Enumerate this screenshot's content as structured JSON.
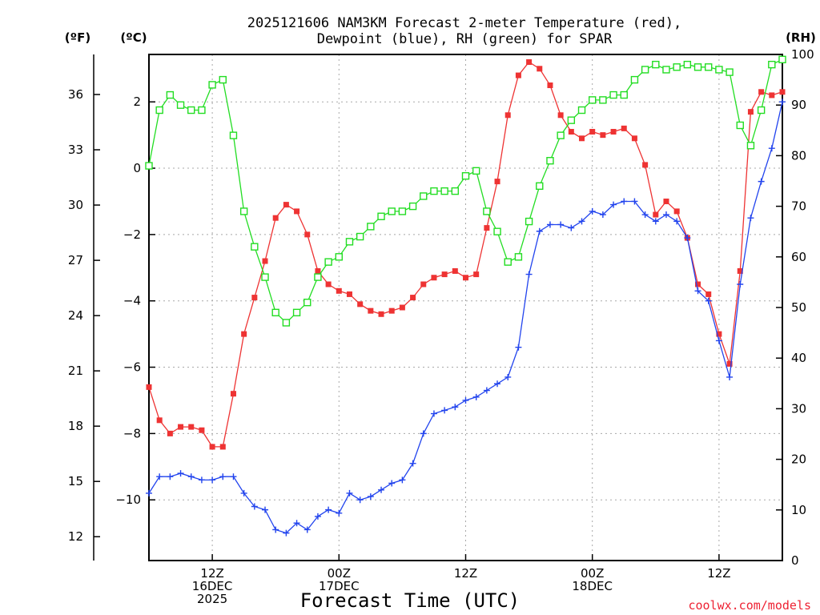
{
  "chart_data": {
    "type": "line",
    "title_line1": "2025121606 NAM3KM Forecast 2-meter Temperature (red),",
    "title_line2": "Dewpoint (blue), RH (green) for SPAR",
    "unit_f": "(ºF)",
    "unit_c": "(ºC)",
    "unit_rh": "(RH)",
    "xlabel": "Forecast Time (UTC)",
    "credit": "coolwx.com/models",
    "x_range_hours": [
      0,
      60
    ],
    "x_ticks": [
      {
        "hour": 6,
        "lines": [
          "12Z",
          "16DEC",
          "2025"
        ]
      },
      {
        "hour": 18,
        "lines": [
          "00Z",
          "17DEC"
        ]
      },
      {
        "hour": 30,
        "lines": [
          "12Z"
        ]
      },
      {
        "hour": 42,
        "lines": [
          "00Z",
          "18DEC"
        ]
      },
      {
        "hour": 54,
        "lines": [
          "12Z"
        ]
      }
    ],
    "c_range": [
      -11.83,
      3.43
    ],
    "c_ticks": [
      "-10",
      "-8",
      "-6",
      "-4",
      "-2",
      "0",
      "2"
    ],
    "f_ticks": [
      "12",
      "15",
      "18",
      "21",
      "24",
      "27",
      "30",
      "33",
      "36"
    ],
    "rh_range": [
      0,
      100
    ],
    "rh_ticks": [
      "0",
      "10",
      "20",
      "30",
      "40",
      "50",
      "60",
      "70",
      "80",
      "90",
      "100"
    ],
    "series": [
      {
        "name": "Temperature (°C)",
        "axis": "c",
        "color": "#ee3333",
        "marker": "filled-square",
        "values": [
          -6.6,
          -7.6,
          -8.0,
          -7.8,
          -7.8,
          -7.9,
          -8.4,
          -8.4,
          -6.8,
          -5.0,
          -3.9,
          -2.8,
          -1.5,
          -1.1,
          -1.3,
          -2.0,
          -3.1,
          -3.5,
          -3.7,
          -3.8,
          -4.1,
          -4.3,
          -4.4,
          -4.3,
          -4.2,
          -3.9,
          -3.5,
          -3.3,
          -3.2,
          -3.1,
          -3.3,
          -3.2,
          -1.8,
          -0.4,
          1.6,
          2.8,
          3.2,
          3.0,
          2.5,
          1.6,
          1.1,
          0.9,
          1.1,
          1.0,
          1.1,
          1.2,
          0.9,
          0.1,
          -1.4,
          -1.0,
          -1.3,
          -2.1,
          -3.5,
          -3.8,
          -5.0,
          -5.9,
          -3.1,
          1.7,
          2.3,
          2.2,
          2.3
        ]
      },
      {
        "name": "Dewpoint (°C)",
        "axis": "c",
        "color": "#2244ee",
        "marker": "plus",
        "values": [
          -9.8,
          -9.3,
          -9.3,
          -9.2,
          -9.3,
          -9.4,
          -9.4,
          -9.3,
          -9.3,
          -9.8,
          -10.2,
          -10.3,
          -10.9,
          -11.0,
          -10.7,
          -10.9,
          -10.5,
          -10.3,
          -10.4,
          -9.8,
          -10.0,
          -9.9,
          -9.7,
          -9.5,
          -9.4,
          -8.9,
          -8.0,
          -7.4,
          -7.3,
          -7.2,
          -7.0,
          -6.9,
          -6.7,
          -6.5,
          -6.3,
          -5.4,
          -3.2,
          -1.9,
          -1.7,
          -1.7,
          -1.8,
          -1.6,
          -1.3,
          -1.4,
          -1.1,
          -1.0,
          -1.0,
          -1.4,
          -1.6,
          -1.4,
          -1.6,
          -2.1,
          -3.7,
          -4.0,
          -5.2,
          -6.3,
          -3.5,
          -1.5,
          -0.4,
          0.6,
          2.0
        ]
      },
      {
        "name": "RH (%)",
        "axis": "rh",
        "color": "#22dd22",
        "marker": "open-square",
        "values": [
          78,
          89,
          92,
          90,
          89,
          89,
          94,
          95,
          84,
          69,
          62,
          56,
          49,
          47,
          49,
          51,
          56,
          59,
          60,
          63,
          64,
          66,
          68,
          69,
          69,
          70,
          72,
          73,
          73,
          73,
          76,
          77,
          69,
          65,
          59,
          60,
          67,
          74,
          79,
          84,
          87,
          89,
          91,
          91,
          92,
          92,
          95,
          97,
          98,
          97,
          97.5,
          98,
          97.5,
          97.5,
          97,
          96.5,
          86,
          82,
          89,
          98,
          99
        ]
      }
    ]
  }
}
